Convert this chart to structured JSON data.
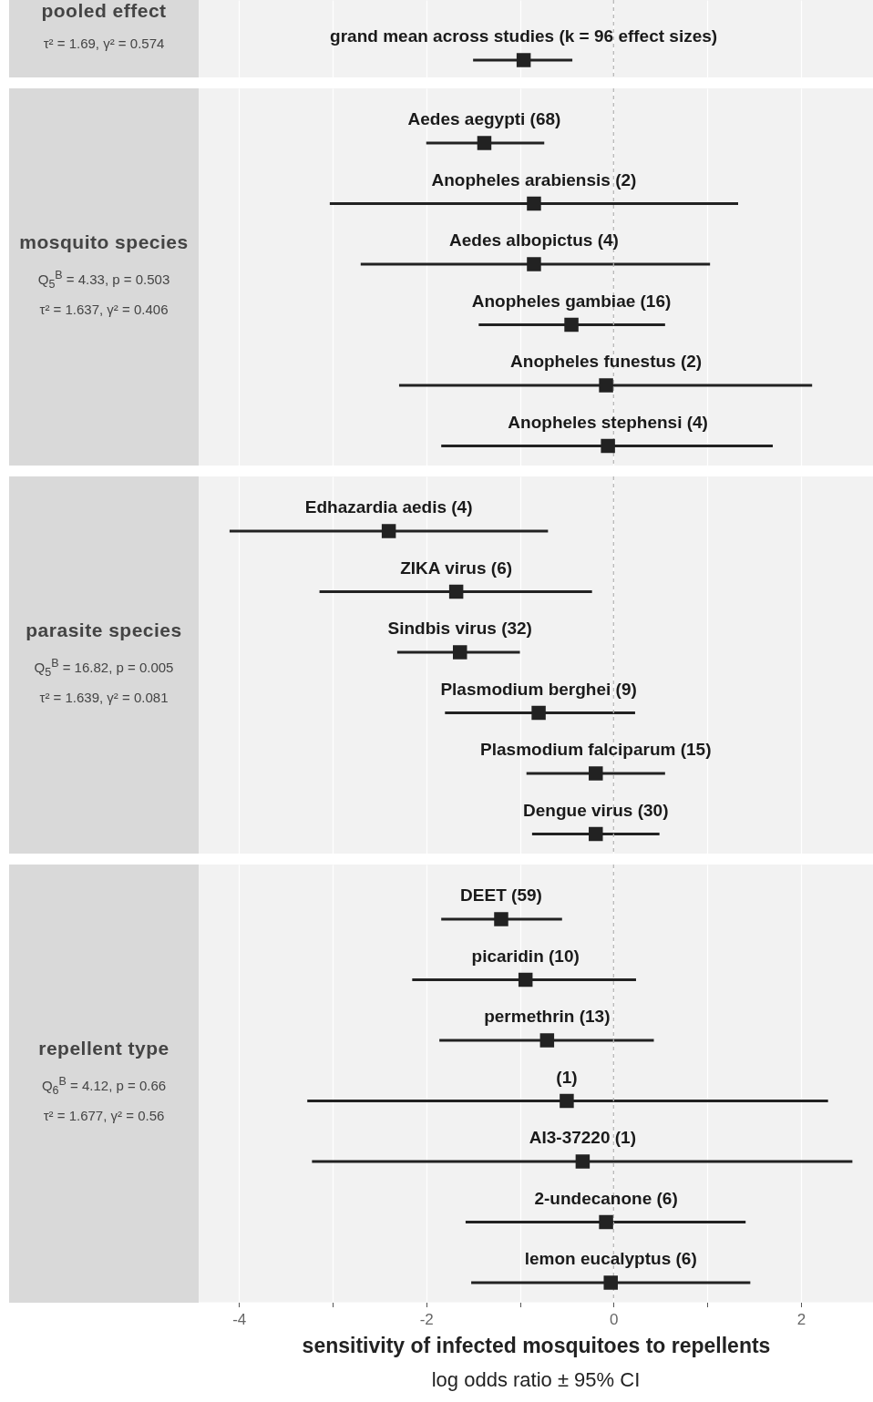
{
  "chart_data": [
    {
      "type": "scatter",
      "orientation": "horizontal",
      "title": "pooled effect",
      "annotations": [
        "τ² = 1.69, γ² = 0.574"
      ],
      "categories": [
        "grand mean across studies (k = 96 effect sizes)"
      ],
      "series": [
        {
          "color": "#222222",
          "values": [
            -0.96
          ],
          "errors": [
            [
              -1.5,
              -0.44
            ]
          ]
        }
      ],
      "xlim": [
        -4.43,
        2.77
      ],
      "xticks": [
        -4,
        {
          "value": -3,
          "label": null
        },
        -2,
        {
          "value": -1,
          "label": null
        },
        0,
        {
          "value": 1,
          "label": null
        },
        2
      ],
      "grid": "x",
      "marker": "square",
      "tick_labels": false,
      "ref_lines": [
        {
          "axis": "x",
          "value": 0,
          "color": "#b3b3b3",
          "line_style": "dashed"
        }
      ]
    },
    {
      "type": "scatter",
      "orientation": "horizontal",
      "title": "mosquito species",
      "annotations": [
        "Q$_{5}$$^{B}$ = 4.33, p = 0.503",
        "τ² = 1.637, γ² = 0.406"
      ],
      "categories": [
        "Aedes aegypti (68)",
        "Anopheles arabiensis (2)",
        "Aedes albopictus (4)",
        "Anopheles gambiae (16)",
        "Anopheles funestus (2)",
        "Anopheles stephensi (4)"
      ],
      "series": [
        {
          "color": "#222222",
          "values": [
            -1.38,
            -0.85,
            -0.85,
            -0.45,
            -0.08,
            -0.06
          ],
          "errors": [
            [
              -2.0,
              -0.74
            ],
            [
              -3.03,
              1.33
            ],
            [
              -2.7,
              1.03
            ],
            [
              -1.44,
              0.55
            ],
            [
              -2.29,
              2.12
            ],
            [
              -1.84,
              1.7
            ]
          ]
        }
      ],
      "xlim": [
        -4.43,
        2.77
      ],
      "xticks": [
        -4,
        {
          "value": -3,
          "label": null
        },
        -2,
        {
          "value": -1,
          "label": null
        },
        0,
        {
          "value": 1,
          "label": null
        },
        2
      ],
      "grid": "x",
      "marker": "square",
      "tick_labels": false,
      "ref_lines": [
        {
          "axis": "x",
          "value": 0,
          "color": "#b3b3b3",
          "line_style": "dashed"
        }
      ]
    },
    {
      "type": "scatter",
      "orientation": "horizontal",
      "title": "parasite species",
      "annotations": [
        "Q$_{5}$$^{B}$ = 16.82, p = 0.005",
        "τ² = 1.639, γ² = 0.081"
      ],
      "categories": [
        "Edhazardia aedis (4)",
        "ZIKA virus (6)",
        "Sindbis virus (32)",
        "Plasmodium berghei (9)",
        "Plasmodium falciparum (15)",
        "Dengue virus (30)"
      ],
      "series": [
        {
          "color": "#222222",
          "values": [
            -2.4,
            -1.68,
            -1.64,
            -0.8,
            -0.19,
            -0.19
          ],
          "errors": [
            [
              -4.1,
              -0.7
            ],
            [
              -3.14,
              -0.23
            ],
            [
              -2.31,
              -1.0
            ],
            [
              -1.8,
              0.23
            ],
            [
              -0.93,
              0.55
            ],
            [
              -0.87,
              0.49
            ]
          ]
        }
      ],
      "xlim": [
        -4.43,
        2.77
      ],
      "xticks": [
        -4,
        {
          "value": -3,
          "label": null
        },
        -2,
        {
          "value": -1,
          "label": null
        },
        0,
        {
          "value": 1,
          "label": null
        },
        2
      ],
      "grid": "x",
      "marker": "square",
      "tick_labels": false,
      "ref_lines": [
        {
          "axis": "x",
          "value": 0,
          "color": "#b3b3b3",
          "line_style": "dashed"
        }
      ]
    },
    {
      "type": "scatter",
      "orientation": "horizontal",
      "title": "repellent type",
      "xlabel": "sensitivity of infected mosquitoes to repellents",
      "annotations": [
        "Q$_{6}$$^{B}$ = 4.12, p = 0.66",
        "τ² = 1.677, γ² = 0.56",
        "log odds ratio ± 95% CI"
      ],
      "categories": [
        "DEET (59)",
        "picaridin (10)",
        "permethrin (13)",
        "(1)",
        "AI3-37220 (1)",
        "2-undecanone (6)",
        "lemon eucalyptus (6)"
      ],
      "series": [
        {
          "color": "#222222",
          "values": [
            -1.2,
            -0.94,
            -0.71,
            -0.5,
            -0.33,
            -0.08,
            -0.03
          ],
          "errors": [
            [
              -1.84,
              -0.55
            ],
            [
              -2.15,
              0.24
            ],
            [
              -1.86,
              0.43
            ],
            [
              -3.27,
              2.29
            ],
            [
              -3.22,
              2.55
            ],
            [
              -1.58,
              1.41
            ],
            [
              -1.52,
              1.46
            ]
          ]
        }
      ],
      "xlim": [
        -4.43,
        2.77
      ],
      "xticks": [
        -4,
        {
          "value": -3,
          "label": null
        },
        -2,
        {
          "value": -1,
          "label": null
        },
        0,
        {
          "value": 1,
          "label": null
        },
        2
      ],
      "grid": "x",
      "marker": "square",
      "tick_labels": "x",
      "ref_lines": [
        {
          "axis": "x",
          "value": 0,
          "color": "#b3b3b3",
          "line_style": "dashed"
        }
      ]
    }
  ]
}
